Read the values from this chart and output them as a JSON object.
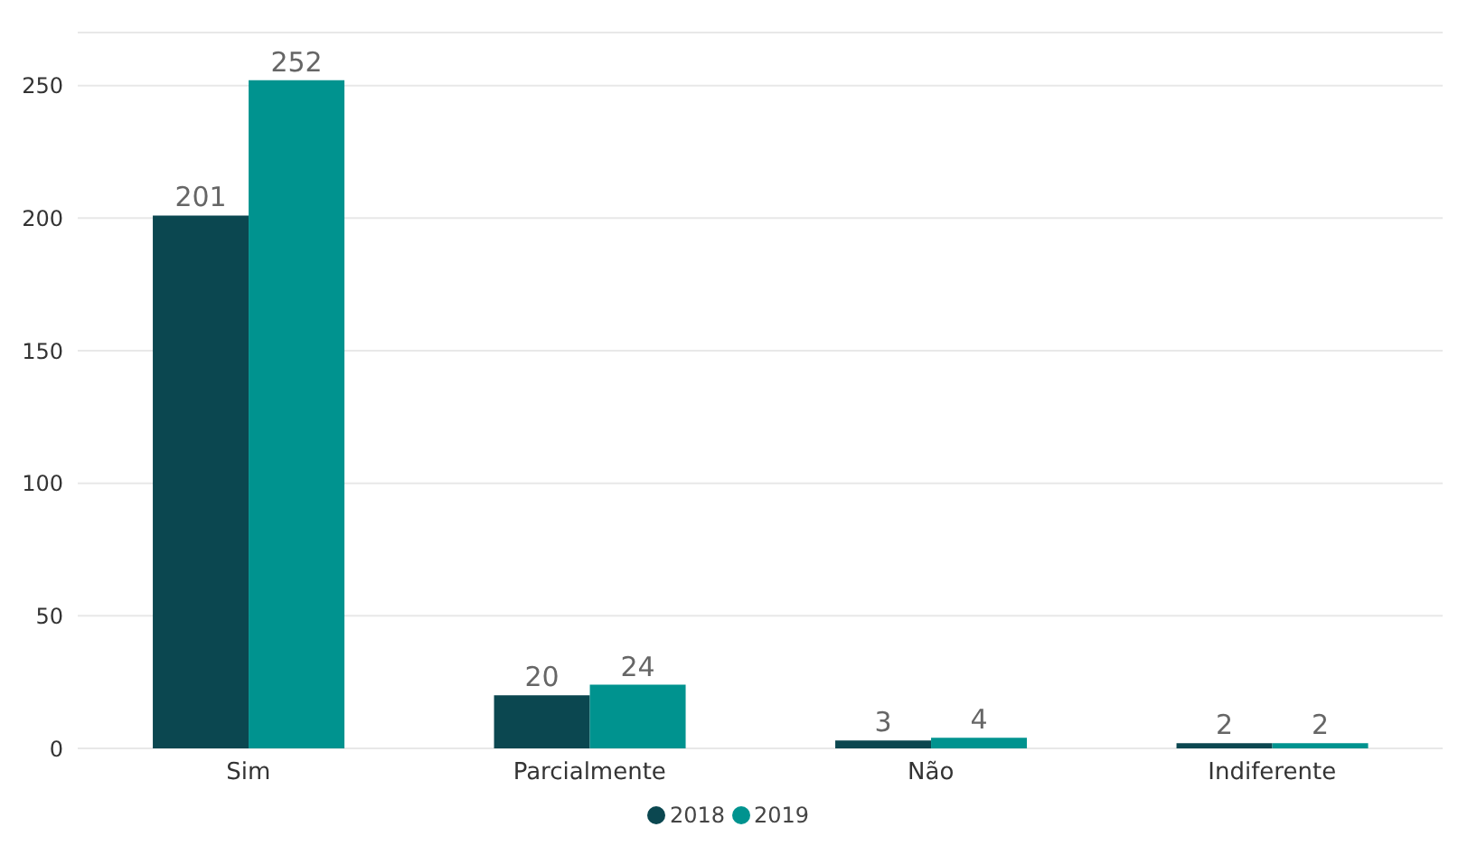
{
  "chart_data": {
    "type": "bar",
    "categories": [
      "Sim",
      "Parcialmente",
      "Não",
      "Indiferente"
    ],
    "series": [
      {
        "name": "2018",
        "color": "#0b4750",
        "values": [
          201,
          20,
          3,
          2
        ]
      },
      {
        "name": "2019",
        "color": "#00938f",
        "values": [
          252,
          24,
          4,
          2
        ]
      }
    ],
    "ylim": [
      0,
      270
    ],
    "yticks": [
      0,
      50,
      100,
      150,
      200,
      250
    ],
    "grid": "y",
    "legend": "bottom",
    "data_labels": true
  }
}
